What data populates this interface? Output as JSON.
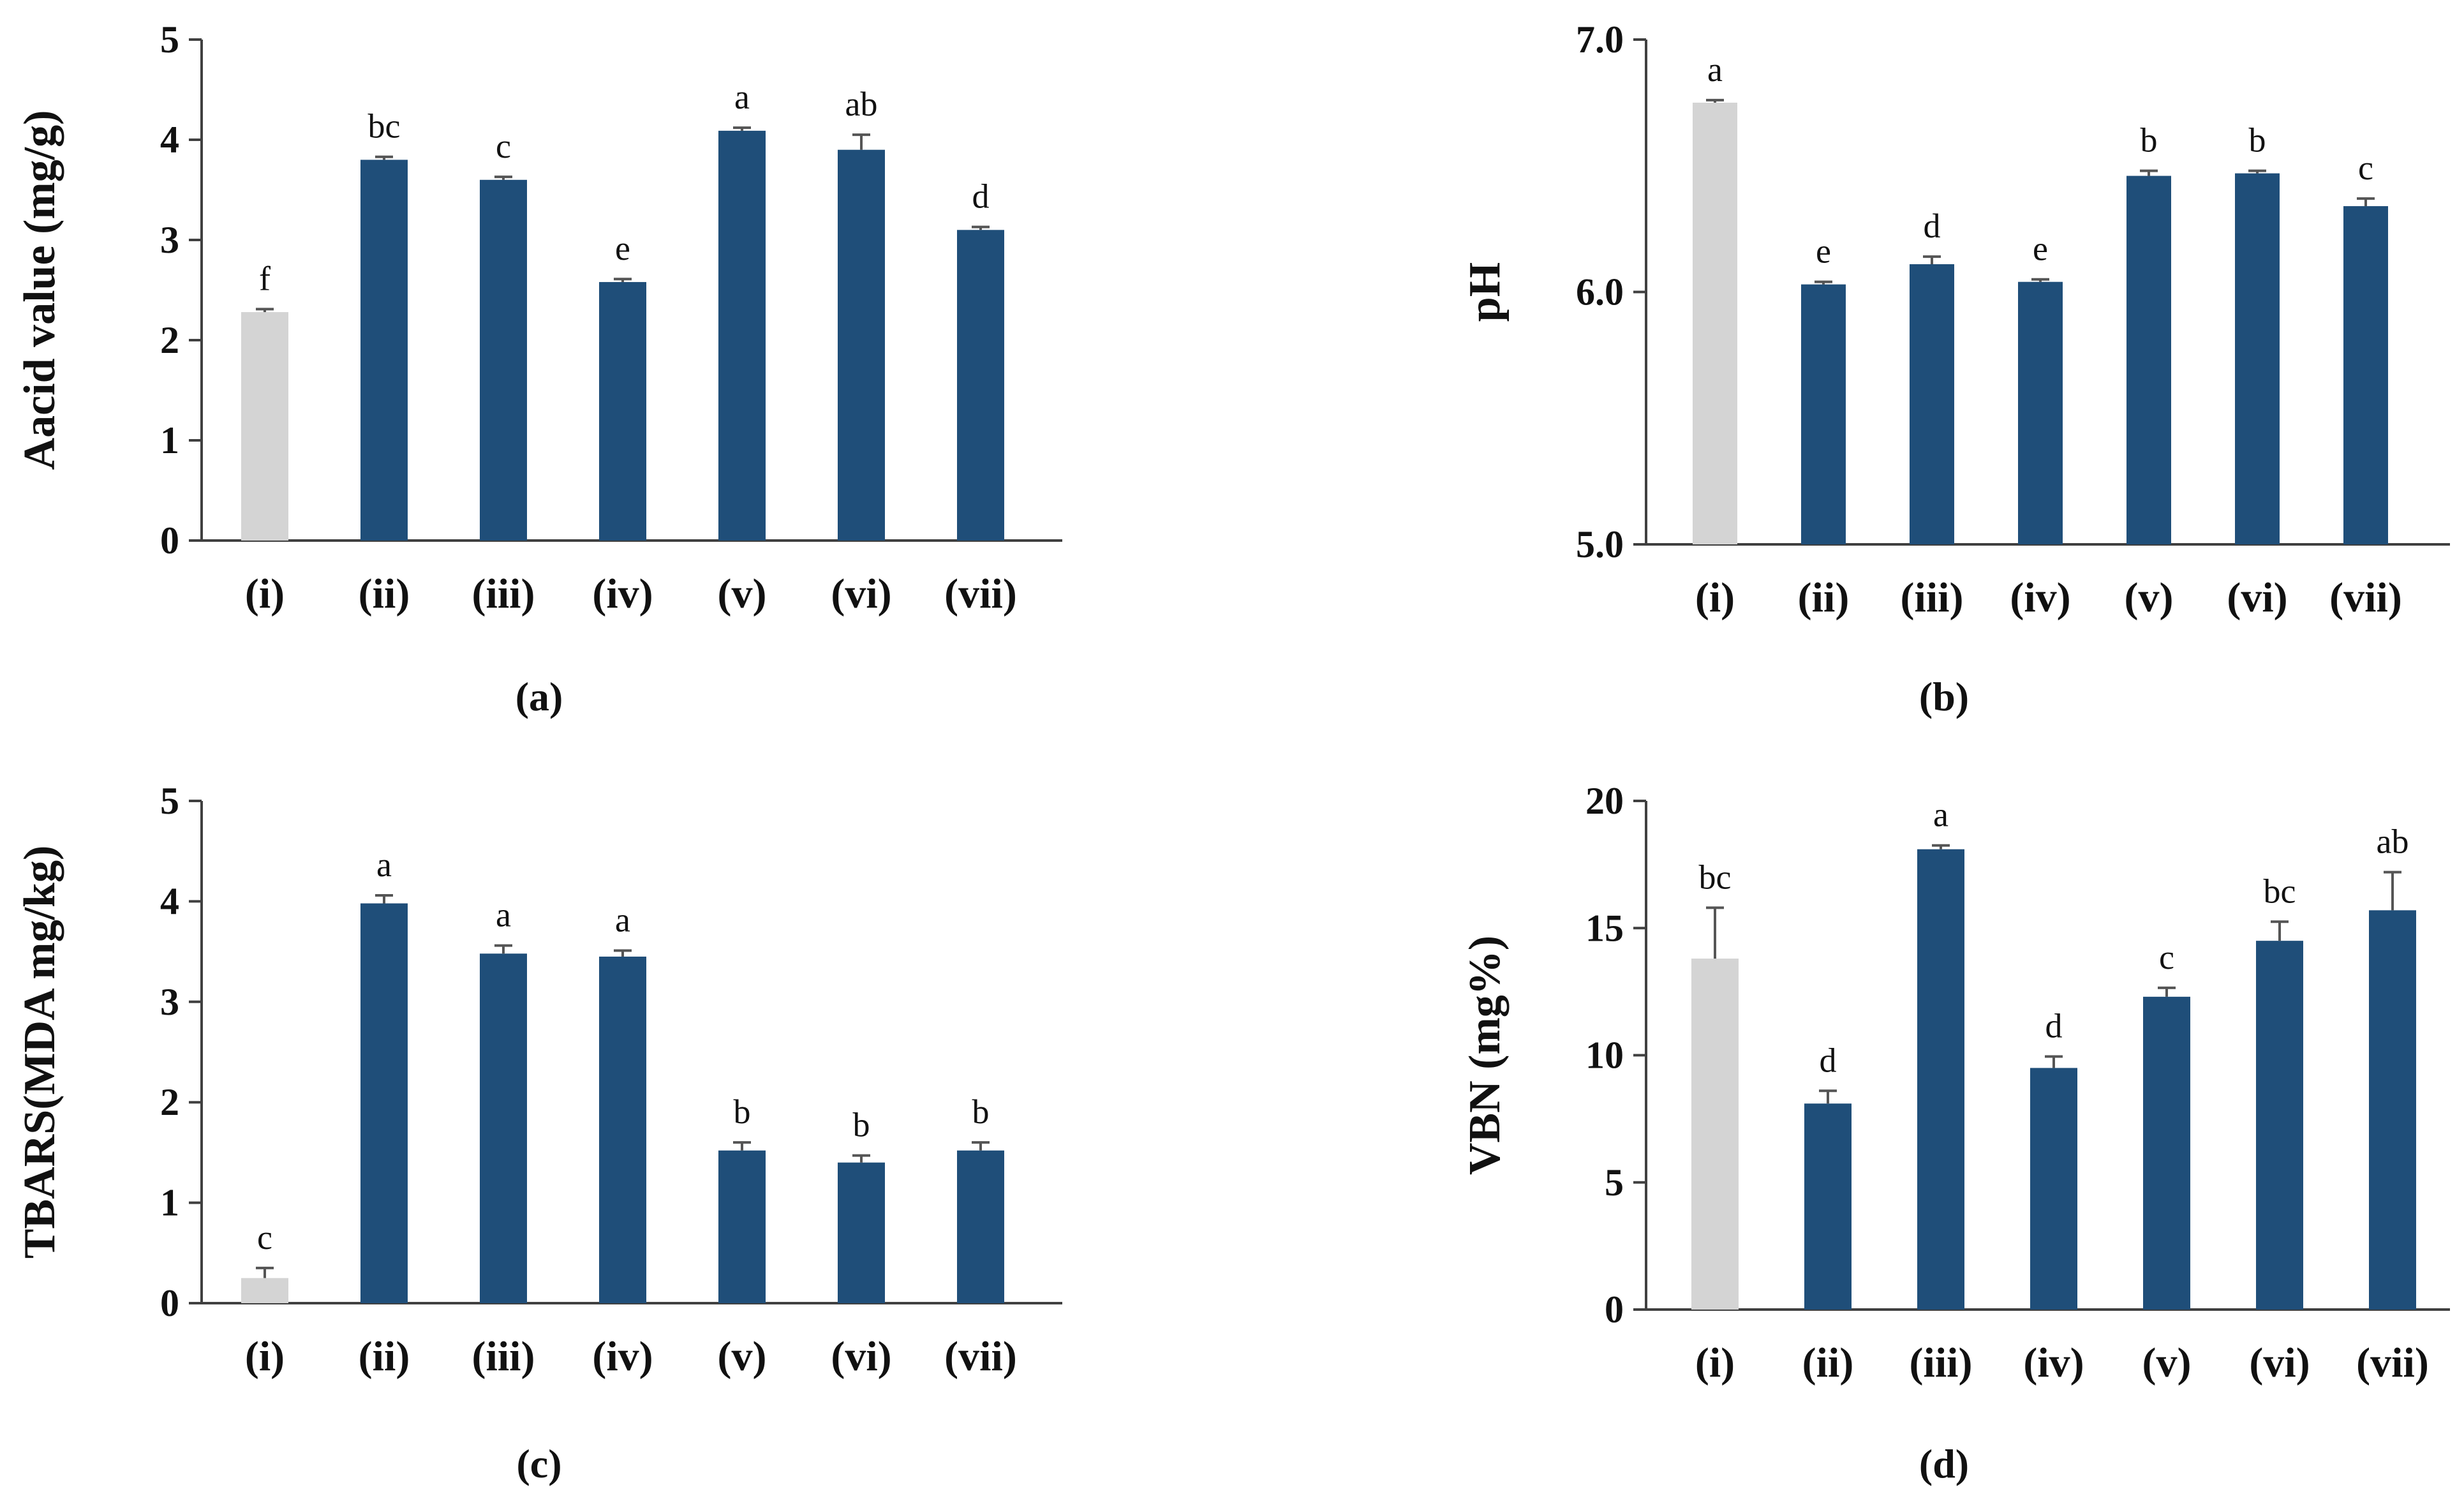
{
  "figure": {
    "background": "#ffffff"
  },
  "colors": {
    "control": "#d4d4d4",
    "treatment": "#1f4e79",
    "axis": "#404040",
    "errorbar": "#555555"
  },
  "chart_data": [
    {
      "type": "bar",
      "panel": "(a)",
      "ylabel": "Aacid value  (mg/g)",
      "categories": [
        "(i)",
        "(ii)",
        "(iii)",
        "(iv)",
        "(v)",
        "(vi)",
        "(vii)"
      ],
      "values": [
        2.28,
        3.8,
        3.6,
        2.58,
        4.09,
        3.9,
        3.1
      ],
      "errors": [
        0.03,
        0.03,
        0.03,
        0.03,
        0.03,
        0.15,
        0.03
      ],
      "significance": [
        "f",
        "bc",
        "c",
        "e",
        "a",
        "ab",
        "d"
      ],
      "ylim": [
        0,
        5
      ],
      "yticks": [
        "0",
        "1",
        "2",
        "3",
        "4",
        "5"
      ],
      "bar_colors": [
        "control",
        "treatment",
        "treatment",
        "treatment",
        "treatment",
        "treatment",
        "treatment"
      ]
    },
    {
      "type": "bar",
      "panel": "(b)",
      "ylabel": "pH",
      "categories": [
        "(i)",
        "(ii)",
        "(iii)",
        "(iv)",
        "(v)",
        "(vi)",
        "(vii)"
      ],
      "values": [
        6.75,
        6.03,
        6.11,
        6.04,
        6.46,
        6.47,
        6.34
      ],
      "errors": [
        0.01,
        0.01,
        0.03,
        0.01,
        0.02,
        0.01,
        0.03
      ],
      "significance": [
        "a",
        "e",
        "d",
        "e",
        "b",
        "b",
        "c"
      ],
      "ylim": [
        5.0,
        7.0
      ],
      "yticks": [
        "5.0",
        "6.0",
        "7.0"
      ],
      "bar_colors": [
        "control",
        "treatment",
        "treatment",
        "treatment",
        "treatment",
        "treatment",
        "treatment"
      ]
    },
    {
      "type": "bar",
      "panel": "(c)",
      "ylabel": "TBARS(MDA mg/kg)",
      "categories": [
        "(i)",
        "(ii)",
        "(iii)",
        "(iv)",
        "(v)",
        "(vi)",
        "(vii)"
      ],
      "values": [
        0.25,
        3.98,
        3.48,
        3.45,
        1.52,
        1.4,
        1.52
      ],
      "errors": [
        0.1,
        0.08,
        0.08,
        0.06,
        0.08,
        0.07,
        0.08
      ],
      "significance": [
        "c",
        "a",
        "a",
        "a",
        "b",
        "b",
        "b"
      ],
      "ylim": [
        0,
        5
      ],
      "yticks": [
        "0",
        "1",
        "2",
        "3",
        "4",
        "5"
      ],
      "bar_colors": [
        "control",
        "treatment",
        "treatment",
        "treatment",
        "treatment",
        "treatment",
        "treatment"
      ]
    },
    {
      "type": "bar",
      "panel": "(d)",
      "ylabel": "VBN (mg%)",
      "categories": [
        "(i)",
        "(ii)",
        "(iii)",
        "(iv)",
        "(v)",
        "(vi)",
        "(vii)"
      ],
      "values": [
        13.8,
        8.1,
        18.1,
        9.5,
        12.3,
        14.5,
        15.7
      ],
      "errors": [
        2.0,
        0.5,
        0.15,
        0.45,
        0.35,
        0.75,
        1.5
      ],
      "significance": [
        "bc",
        "d",
        "a",
        "d",
        "c",
        "bc",
        "ab"
      ],
      "ylim": [
        0,
        20
      ],
      "yticks": [
        "0",
        "5",
        "10",
        "15",
        "20"
      ],
      "bar_colors": [
        "control",
        "treatment",
        "treatment",
        "treatment",
        "treatment",
        "treatment",
        "treatment"
      ]
    }
  ]
}
